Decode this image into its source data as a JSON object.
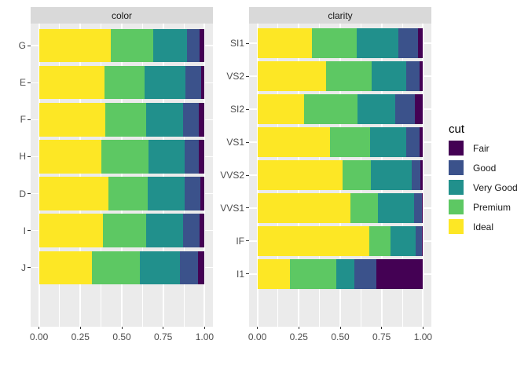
{
  "chart_data": {
    "type": "bar",
    "subtype": "horizontal_stacked_proportion_faceted",
    "title": "",
    "x_axis": {
      "tick_labels": [
        "0.00",
        "0.25",
        "0.50",
        "0.75",
        "1.00"
      ],
      "tick_values": [
        0,
        0.25,
        0.5,
        0.75,
        1
      ],
      "minor_tick_values": [
        0.125,
        0.375,
        0.625,
        0.875
      ],
      "lim": [
        0,
        1
      ],
      "grid": "on"
    },
    "stack_order_left_to_right": [
      "Ideal",
      "Premium",
      "Very Good",
      "Good",
      "Fair"
    ],
    "facets": [
      {
        "label": "color",
        "categories": [
          "G",
          "E",
          "F",
          "H",
          "D",
          "I",
          "J"
        ],
        "series": [
          {
            "name": "Ideal",
            "values": [
              0.432,
              0.398,
              0.401,
              0.375,
              0.418,
              0.386,
              0.319
            ]
          },
          {
            "name": "Premium",
            "values": [
              0.259,
              0.239,
              0.244,
              0.284,
              0.237,
              0.263,
              0.288
            ]
          },
          {
            "name": "Very Good",
            "values": [
              0.204,
              0.245,
              0.227,
              0.22,
              0.223,
              0.223,
              0.242
            ]
          },
          {
            "name": "Good",
            "values": [
              0.077,
              0.095,
              0.095,
              0.085,
              0.098,
              0.096,
              0.109
            ]
          },
          {
            "name": "Fair",
            "values": [
              0.028,
              0.023,
              0.033,
              0.036,
              0.024,
              0.032,
              0.042
            ]
          }
        ]
      },
      {
        "label": "clarity",
        "categories": [
          "SI1",
          "VS2",
          "SI2",
          "VS1",
          "VVS2",
          "VVS1",
          "IF",
          "I1"
        ],
        "series": [
          {
            "name": "Ideal",
            "values": [
              0.328,
              0.414,
              0.283,
              0.439,
              0.514,
              0.56,
              0.677,
              0.197
            ]
          },
          {
            "name": "Premium",
            "values": [
              0.274,
              0.274,
              0.321,
              0.243,
              0.172,
              0.168,
              0.128,
              0.277
            ]
          },
          {
            "name": "Very Good",
            "values": [
              0.248,
              0.211,
              0.228,
              0.218,
              0.244,
              0.216,
              0.15,
              0.113
            ]
          },
          {
            "name": "Good",
            "values": [
              0.119,
              0.08,
              0.118,
              0.079,
              0.056,
              0.051,
              0.04,
              0.13
            ]
          },
          {
            "name": "Fair",
            "values": [
              0.031,
              0.021,
              0.05,
              0.021,
              0.014,
              0.005,
              0.005,
              0.283
            ]
          }
        ]
      }
    ],
    "legend": {
      "title": "cut",
      "position": "right",
      "entries": [
        {
          "label": "Fair",
          "color": "#440154"
        },
        {
          "label": "Good",
          "color": "#3B528B"
        },
        {
          "label": "Very Good",
          "color": "#21908C"
        },
        {
          "label": "Premium",
          "color": "#5DC863"
        },
        {
          "label": "Ideal",
          "color": "#FDE725"
        }
      ]
    },
    "colors": {
      "panel_bg": "#EBEBEB",
      "strip_bg": "#D9D9D9",
      "gridline": "#FFFFFF",
      "axis_text": "#4D4D4D",
      "strip_text": "#1A1A1A",
      "tick_mark": "#333333",
      "background": "#FFFFFF"
    }
  }
}
